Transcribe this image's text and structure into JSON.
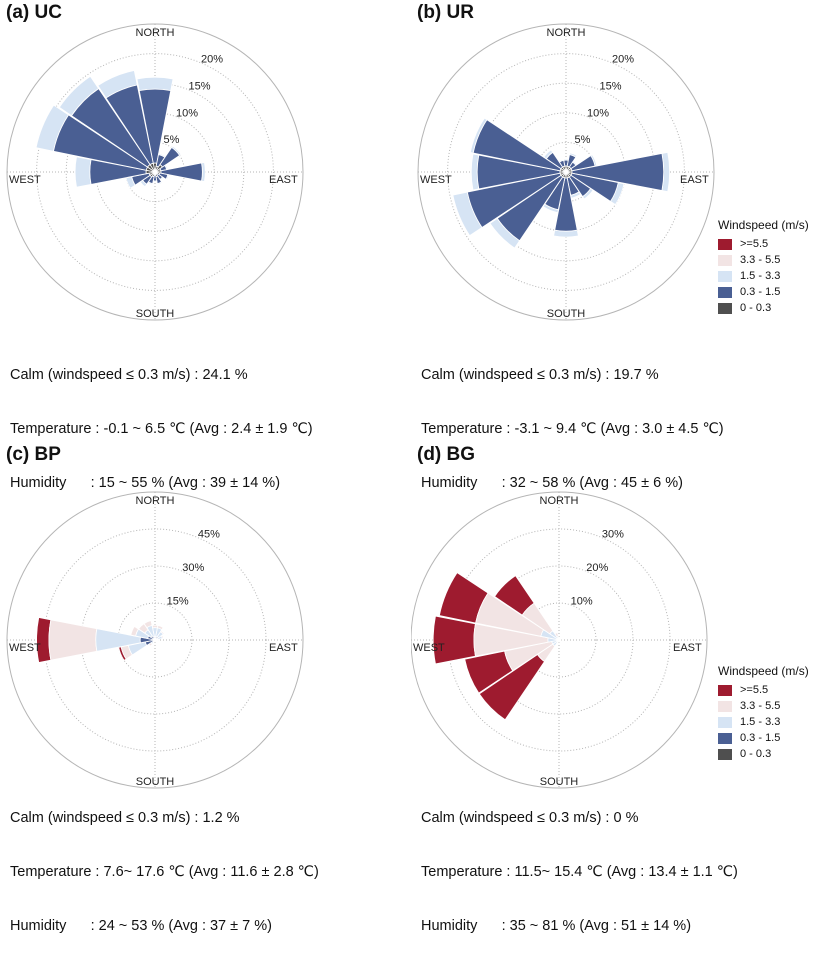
{
  "colors": {
    "ge5_5": "#9e1b2f",
    "b3_3_5_5": "#f2e4e4",
    "b1_5_3_3": "#d6e4f4",
    "b0_3_1_5": "#4a5f93",
    "b0_0_3": "#4f4f4f",
    "grid": "#b5b5b5"
  },
  "legend": {
    "title": "Windspeed (m/s)",
    "items": [
      {
        "label": ">=5.5",
        "color": "#9e1b2f"
      },
      {
        "label": "3.3 - 5.5",
        "color": "#f2e4e4"
      },
      {
        "label": "1.5 - 3.3",
        "color": "#d6e4f4"
      },
      {
        "label": "0.3 - 1.5",
        "color": "#4a5f93"
      },
      {
        "label": "0 - 0.3",
        "color": "#4f4f4f"
      }
    ]
  },
  "directions": {
    "north": "NORTH",
    "east": "EAST",
    "south": "SOUTH",
    "west": "WEST"
  },
  "panels": [
    {
      "title": "(a) UC",
      "calm": "Calm (windspeed ≤ 0.3 m/s) : 24.1 %",
      "temperature": "Temperature : -0.1 ~ 6.5 ℃ (Avg : 2.4 ± 1.9 ℃)",
      "humidity": "Humidity      : 15 ~ 55 % (Avg : 39 ± 14 %)"
    },
    {
      "title": "(b) UR",
      "calm": "Calm (windspeed ≤ 0.3 m/s) : 19.7 %",
      "temperature": "Temperature : -3.1 ~ 9.4 ℃ (Avg : 3.0 ± 4.5 ℃)",
      "humidity": "Humidity      : 32 ~ 58 % (Avg : 45 ± 6 %)"
    },
    {
      "title": "(c) BP",
      "calm": "Calm (windspeed ≤ 0.3 m/s) : 1.2 %",
      "temperature": "Temperature : 7.6~ 17.6 ℃ (Avg : 11.6 ± 2.8 ℃)",
      "humidity": "Humidity      : 24 ~ 53 % (Avg : 37 ± 7 %)"
    },
    {
      "title": "(d) BG",
      "calm": "Calm (windspeed ≤ 0.3 m/s) : 0 %",
      "temperature": "Temperature : 11.5~ 15.4 ℃ (Avg : 13.4 ± 1.1 ℃)",
      "humidity": "Humidity      : 35 ~ 81 % (Avg : 51 ± 14 %)"
    }
  ],
  "chart_data": [
    {
      "type": "windrose",
      "title": "(a) UC",
      "bins": [
        "0 - 0.3",
        "0.3 - 1.5",
        "1.5 - 3.3",
        "3.3 - 5.5",
        ">=5.5"
      ],
      "directions": [
        "N",
        "NNE",
        "NE",
        "ENE",
        "E",
        "ESE",
        "SE",
        "SSE",
        "S",
        "SSW",
        "SW",
        "WSW",
        "W",
        "WNW",
        "NW",
        "NNW"
      ],
      "rings": [
        5,
        10,
        15,
        20
      ],
      "ring_labels": [
        "5%",
        "10%",
        "15%",
        "20%"
      ],
      "rmax": 25,
      "cumulative": [
        [
          1.5,
          14,
          16,
          16,
          16
        ],
        [
          1.0,
          3,
          3.2,
          3.2,
          3.2
        ],
        [
          1.5,
          5,
          5.3,
          5.3,
          5.3
        ],
        [
          1.0,
          2,
          2.2,
          2.2,
          2.2
        ],
        [
          1.0,
          8,
          8.5,
          8.5,
          8.5
        ],
        [
          0.8,
          2.2,
          2.4,
          2.4,
          2.4
        ],
        [
          0.5,
          1.5,
          1.7,
          1.7,
          1.7
        ],
        [
          0.8,
          2,
          2.2,
          2.2,
          2.2
        ],
        [
          0.5,
          1.5,
          1.7,
          1.7,
          1.7
        ],
        [
          0.8,
          2,
          2.2,
          2.2,
          2.2
        ],
        [
          1.0,
          2.5,
          3,
          3,
          3
        ],
        [
          1.0,
          4,
          5,
          5,
          5
        ],
        [
          1.5,
          11,
          13.5,
          13.5,
          13.5
        ],
        [
          1.5,
          17.5,
          20.5,
          20.5,
          20.5
        ],
        [
          1.5,
          17,
          19.5,
          19.5,
          19.5
        ],
        [
          1.5,
          15,
          17.5,
          17.5,
          17.5
        ]
      ]
    },
    {
      "type": "windrose",
      "title": "(b) UR",
      "bins": [
        "0 - 0.3",
        "0.3 - 1.5",
        "1.5 - 3.3",
        "3.3 - 5.5",
        ">=5.5"
      ],
      "directions": [
        "N",
        "NNE",
        "NE",
        "ENE",
        "E",
        "ESE",
        "SE",
        "SSE",
        "S",
        "SSW",
        "SW",
        "WSW",
        "W",
        "WNW",
        "NW",
        "NNW"
      ],
      "rings": [
        5,
        10,
        15,
        20
      ],
      "ring_labels": [
        "5%",
        "10%",
        "15%",
        "20%"
      ],
      "rmax": 25,
      "cumulative": [
        [
          1.0,
          2,
          2.2,
          2.2,
          2.2
        ],
        [
          1.0,
          3,
          3.3,
          3.3,
          3.3
        ],
        [
          1.0,
          2,
          2.2,
          2.2,
          2.2
        ],
        [
          1.0,
          5,
          5.3,
          5.3,
          5.3
        ],
        [
          1.0,
          16.5,
          17.5,
          17.5,
          17.5
        ],
        [
          1.0,
          9,
          10,
          10,
          10
        ],
        [
          1.0,
          5,
          5.5,
          5.5,
          5.5
        ],
        [
          1.0,
          4,
          4.5,
          4.5,
          4.5
        ],
        [
          1.0,
          10,
          11,
          11,
          11
        ],
        [
          1.0,
          6.5,
          7,
          7,
          7
        ],
        [
          1.0,
          14,
          15.5,
          15.5,
          15.5
        ],
        [
          1.0,
          17,
          19.5,
          19.5,
          19.5
        ],
        [
          1.0,
          15,
          16,
          16,
          16
        ],
        [
          1.0,
          16,
          16.5,
          16.5,
          16.5
        ],
        [
          1.0,
          4,
          4.5,
          4.5,
          4.5
        ],
        [
          1.0,
          2,
          2.2,
          2.2,
          2.2
        ]
      ]
    },
    {
      "type": "windrose",
      "title": "(c) BP",
      "bins": [
        "0 - 0.3",
        "0.3 - 1.5",
        "1.5 - 3.3",
        "3.3 - 5.5",
        ">=5.5"
      ],
      "directions": [
        "N",
        "NNE",
        "NE",
        "ENE",
        "E",
        "ESE",
        "SE",
        "SSE",
        "S",
        "SSW",
        "SW",
        "WSW",
        "W",
        "WNW",
        "NW",
        "NNW"
      ],
      "rings": [
        15,
        30,
        45
      ],
      "ring_labels": [
        "15%",
        "30%",
        "45%"
      ],
      "rmax": 60,
      "cumulative": [
        [
          0.3,
          1.0,
          5,
          6,
          6
        ],
        [
          0.3,
          1.5,
          5,
          6,
          6
        ],
        [
          0.3,
          1.5,
          4,
          4.5,
          4.5
        ],
        [
          0.3,
          1.0,
          3,
          3.5,
          3.5
        ],
        [
          0.3,
          1.0,
          1.5,
          1.5,
          1.5
        ],
        [
          0.3,
          0.8,
          1,
          1,
          1
        ],
        [
          0.3,
          0.5,
          0.7,
          0.7,
          0.7
        ],
        [
          0.3,
          0.5,
          0.7,
          0.7,
          0.7
        ],
        [
          0.3,
          0.5,
          0.7,
          0.7,
          0.7
        ],
        [
          0.3,
          0.5,
          0.7,
          0.7,
          0.7
        ],
        [
          0.3,
          1.0,
          2,
          3,
          3
        ],
        [
          0.3,
          4,
          11,
          14,
          15
        ],
        [
          0.3,
          6,
          24,
          43,
          48
        ],
        [
          0.3,
          3,
          8,
          10,
          10
        ],
        [
          0.3,
          2,
          5,
          8,
          8
        ],
        [
          0.3,
          1.5,
          6,
          8,
          8
        ]
      ]
    },
    {
      "type": "windrose",
      "title": "(d) BG",
      "bins": [
        "0 - 0.3",
        "0.3 - 1.5",
        "1.5 - 3.3",
        "3.3 - 5.5",
        ">=5.5"
      ],
      "directions": [
        "N",
        "NNE",
        "NE",
        "ENE",
        "E",
        "ESE",
        "SE",
        "SSE",
        "S",
        "SSW",
        "SW",
        "WSW",
        "W",
        "WNW",
        "NW",
        "NNW"
      ],
      "rings": [
        10,
        20,
        30
      ],
      "ring_labels": [
        "10%",
        "20%",
        "30%"
      ],
      "rmax": 40,
      "cumulative": [
        [
          0,
          0.2,
          0.5,
          0.5,
          0.5
        ],
        [
          0,
          0.2,
          0.5,
          0.5,
          0.5
        ],
        [
          0,
          0.2,
          0.5,
          0.5,
          0.5
        ],
        [
          0,
          0.2,
          0.5,
          0.5,
          0.5
        ],
        [
          0,
          0.2,
          0.5,
          0.5,
          0.5
        ],
        [
          0,
          0.2,
          0.5,
          0.5,
          0.5
        ],
        [
          0,
          0.2,
          0.5,
          0.5,
          0.5
        ],
        [
          0,
          0.2,
          0.5,
          0.5,
          0.5
        ],
        [
          0,
          0.2,
          0.5,
          0.5,
          0.5
        ],
        [
          0,
          0.2,
          0.5,
          0.5,
          0.5
        ],
        [
          0,
          0.5,
          2,
          7,
          26
        ],
        [
          0,
          0.5,
          2,
          15,
          26
        ],
        [
          0,
          0.5,
          3,
          23,
          34
        ],
        [
          0,
          0.5,
          5,
          23,
          33
        ],
        [
          0,
          0.5,
          3,
          12,
          21
        ],
        [
          0,
          0.2,
          1,
          2,
          2
        ]
      ]
    }
  ]
}
